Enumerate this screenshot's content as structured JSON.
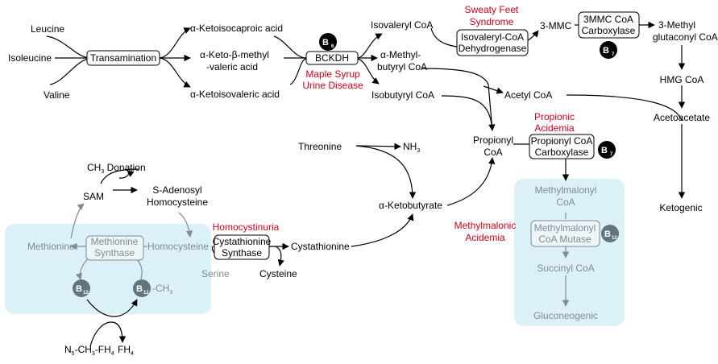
{
  "amino_acids": {
    "leucine": "Leucine",
    "isoleucine": "Isoleucine",
    "valine": "Valine"
  },
  "transamination": "Transamination",
  "keto_acids": {
    "a_kic": "α-Ketoisocaproic acid",
    "a_kmv_1": "α-Keto-β-methyl",
    "a_kmv_2": "-valeric acid",
    "a_kiv": "α-Ketoisovaleric acid"
  },
  "bckdh": {
    "label": "BCKDH",
    "cofactor": "B",
    "cofactor_sub": "6"
  },
  "msud": {
    "line1": "Maple Syrup",
    "line2": "Urine Disease"
  },
  "acyl": {
    "isovaleryl": "Isovaleryl CoA",
    "mb_1": "α-Methyl-",
    "mb_2": "butyryl CoA",
    "isobutyryl": "Isobutyryl CoA"
  },
  "sweaty": {
    "line1": "Sweaty Feet",
    "line2": "Syndrome"
  },
  "ivd": {
    "line1": "Isovaleryl-CoA",
    "line2": "Dehydrogenase"
  },
  "mmc": "3-MMC",
  "mcc": {
    "line1": "3MMC CoA",
    "line2": "Carboxylase",
    "cofactor": "B",
    "cofactor_sub": "7"
  },
  "methylglut": {
    "line1": "3-Methyl",
    "line2": "glutaconyl CoA"
  },
  "hmg": "HMG CoA",
  "acetoacetate": "Acetoacetate",
  "ketogenic": "Ketogenic",
  "acetyl": "Acetyl CoA",
  "propionic": {
    "line1": "Propionic",
    "line2": "Acidemia"
  },
  "propionyl": {
    "line1": "Propionyl",
    "line2": "CoA"
  },
  "pcc": {
    "line1": "Propionyl CoA",
    "line2": "Carboxylase",
    "cofactor": "B",
    "cofactor_sub": "7"
  },
  "threonine": "Threonine",
  "nh3": {
    "main": "NH",
    "sub": "3"
  },
  "a_ketobutyrate": "α-Ketobutyrate",
  "homocystinuria": "Homocystinuria",
  "cbs": {
    "line1": "Cystathionine",
    "line2": "Synthase"
  },
  "cystathionine": "Cystathionine",
  "serine": "Serine",
  "cysteine": "Cysteine",
  "ch3_donation": {
    "main": "CH",
    "sub": "3",
    "rest": " Donation"
  },
  "sam": "SAM",
  "sah": {
    "line1": "S-Adenosyl",
    "line2": "Homocysteine"
  },
  "methionine": "Methionine",
  "ms": {
    "line1": "Methionine",
    "line2": "Synthase"
  },
  "homocysteine": "Homocysteine",
  "b12": {
    "main": "B",
    "sub": "12",
    "ch3": "-CH",
    "ch3_sub": "3"
  },
  "mthf": {
    "p1": "N",
    "s1": "5",
    "p2": "-CH",
    "s2": "3",
    "p3": "-FH",
    "s3": "4"
  },
  "fh4": {
    "main": "FH",
    "sub": "4"
  },
  "methylmalonic": {
    "line1": "Methylmalonic",
    "line2": "Acidemia"
  },
  "mm_coa": {
    "line1": "Methylmalonyl",
    "line2": "CoA"
  },
  "mut": {
    "line1": "Methylmalonyl",
    "line2": "CoA Mutase",
    "cofactor": "B",
    "cofactor_sub": "12"
  },
  "succinyl": "Succinyl CoA",
  "gluconeogenic": "Gluconeogenic",
  "colors": {
    "red": "#d0021b",
    "gray": "#7f8c91",
    "panel": "#dcf0f9",
    "coin_dark": "#000000",
    "coin_gray": "#63757c"
  }
}
